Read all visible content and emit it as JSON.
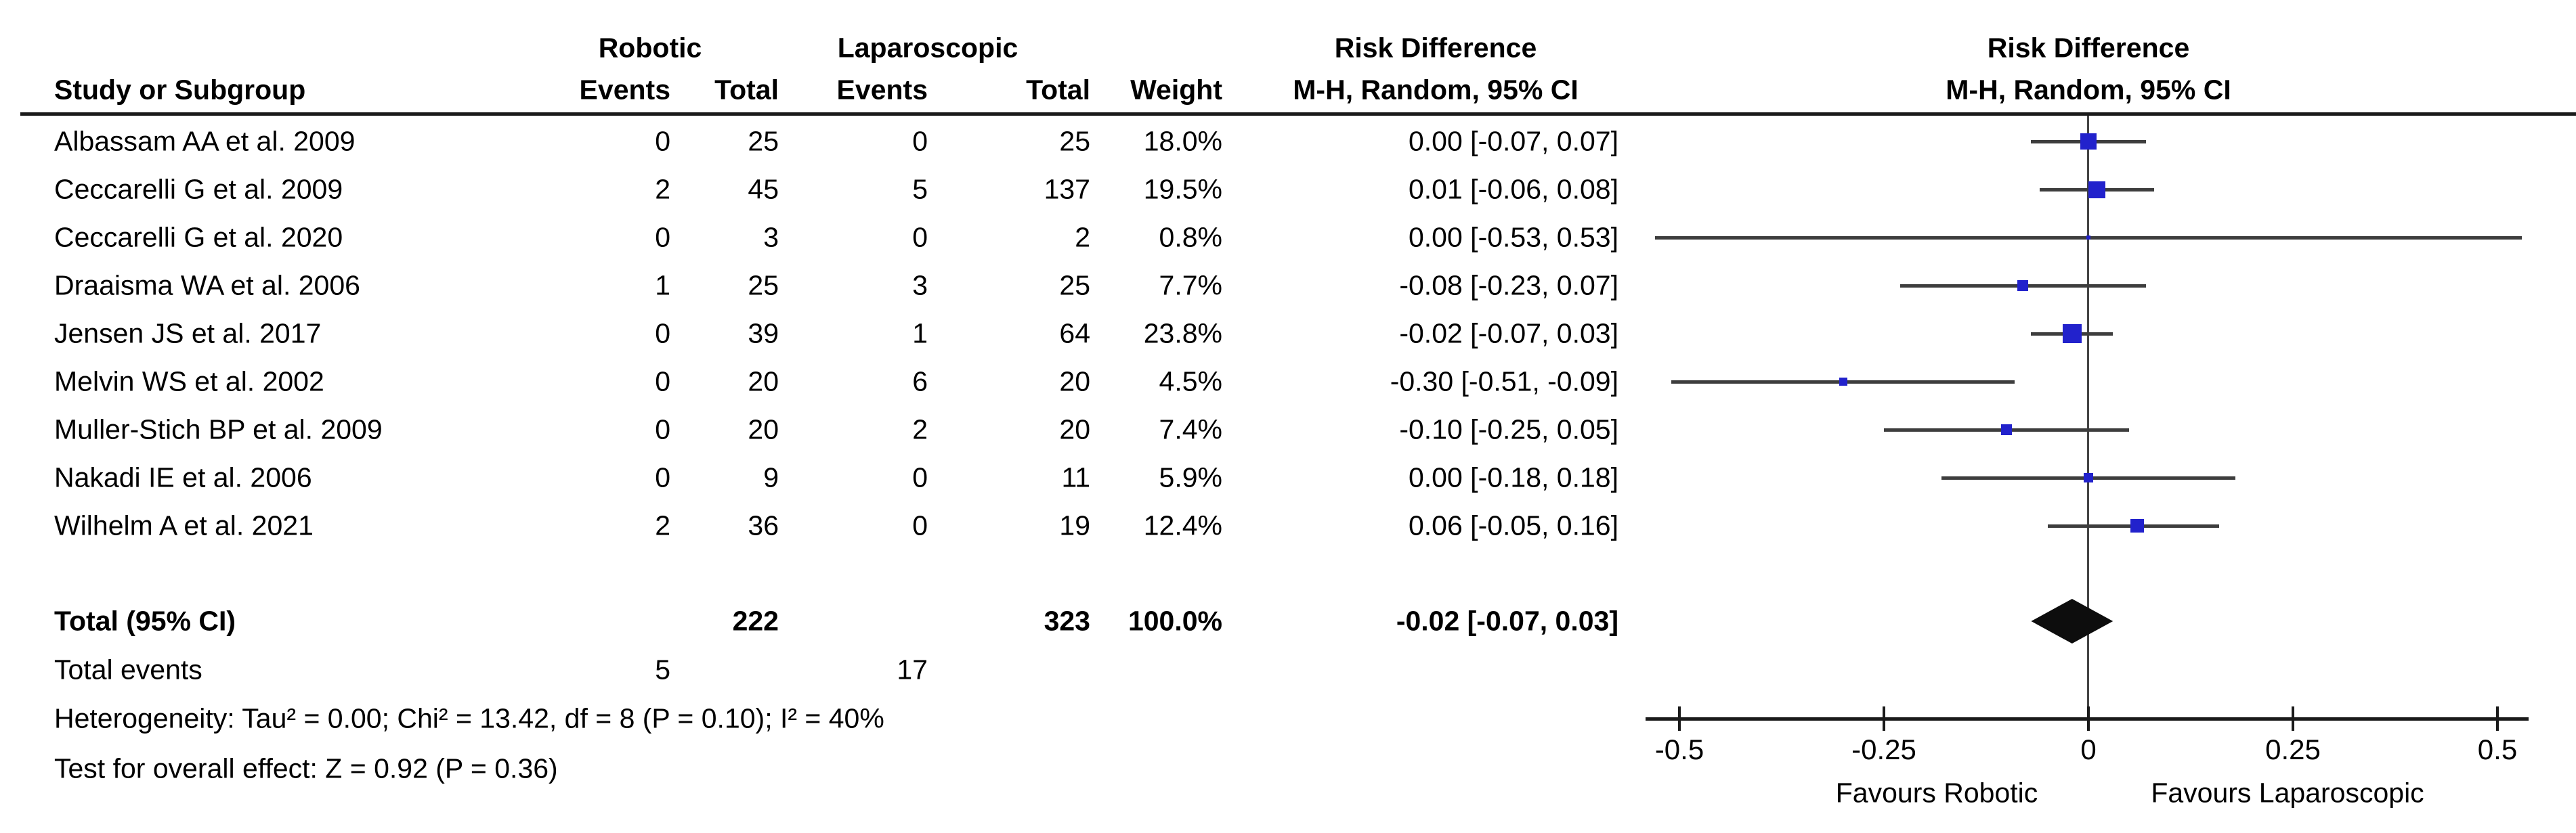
{
  "header": {
    "group1": "Robotic",
    "group2": "Laparoscopic",
    "col_study": "Study or Subgroup",
    "col_events1": "Events",
    "col_total1": "Total",
    "col_events2": "Events",
    "col_total2": "Total",
    "col_weight": "Weight",
    "effect_title_text": "Risk Difference",
    "effect_subtitle_text": "M-H, Random, 95% CI",
    "effect_title_plot": "Risk Difference",
    "effect_subtitle_plot": "M-H, Random, 95% CI"
  },
  "colors": {
    "square": "#2222cc",
    "ci_line": "#3d3d3d",
    "diamond": "#0d0d0d",
    "axis": "#1a1a1a",
    "text": "#000000"
  },
  "chart_data": {
    "type": "forest",
    "effect_measure": "Risk Difference, M-H, Random, 95% CI",
    "xlim": [
      -0.5,
      0.5
    ],
    "studies": [
      {
        "name": "Albassam AA et al. 2009",
        "events_robotic": "0",
        "total_robotic": "25",
        "events_lap": "0",
        "total_lap": "25",
        "weight": "18.0%",
        "weight_value": 18.0,
        "rd": 0.0,
        "ci": [
          -0.07,
          0.07
        ],
        "ci_label": "0.00 [-0.07, 0.07]"
      },
      {
        "name": "Ceccarelli G et al. 2009",
        "events_robotic": "2",
        "total_robotic": "45",
        "events_lap": "5",
        "total_lap": "137",
        "weight": "19.5%",
        "weight_value": 19.5,
        "rd": 0.01,
        "ci": [
          -0.06,
          0.08
        ],
        "ci_label": "0.01 [-0.06, 0.08]"
      },
      {
        "name": "Ceccarelli G et al. 2020",
        "events_robotic": "0",
        "total_robotic": "3",
        "events_lap": "0",
        "total_lap": "2",
        "weight": "0.8%",
        "weight_value": 0.8,
        "rd": 0.0,
        "ci": [
          -0.53,
          0.53
        ],
        "ci_label": "0.00 [-0.53, 0.53]"
      },
      {
        "name": "Draaisma WA et al. 2006",
        "events_robotic": "1",
        "total_robotic": "25",
        "events_lap": "3",
        "total_lap": "25",
        "weight": "7.7%",
        "weight_value": 7.7,
        "rd": -0.08,
        "ci": [
          -0.23,
          0.07
        ],
        "ci_label": "-0.08 [-0.23, 0.07]"
      },
      {
        "name": "Jensen JS et al. 2017",
        "events_robotic": "0",
        "total_robotic": "39",
        "events_lap": "1",
        "total_lap": "64",
        "weight": "23.8%",
        "weight_value": 23.8,
        "rd": -0.02,
        "ci": [
          -0.07,
          0.03
        ],
        "ci_label": "-0.02 [-0.07, 0.03]"
      },
      {
        "name": "Melvin WS et al. 2002",
        "events_robotic": "0",
        "total_robotic": "20",
        "events_lap": "6",
        "total_lap": "20",
        "weight": "4.5%",
        "weight_value": 4.5,
        "rd": -0.3,
        "ci": [
          -0.51,
          -0.09
        ],
        "ci_label": "-0.30 [-0.51, -0.09]"
      },
      {
        "name": "Muller-Stich BP et al. 2009",
        "events_robotic": "0",
        "total_robotic": "20",
        "events_lap": "2",
        "total_lap": "20",
        "weight": "7.4%",
        "weight_value": 7.4,
        "rd": -0.1,
        "ci": [
          -0.25,
          0.05
        ],
        "ci_label": "-0.10 [-0.25, 0.05]"
      },
      {
        "name": "Nakadi IE et al. 2006",
        "events_robotic": "0",
        "total_robotic": "9",
        "events_lap": "0",
        "total_lap": "11",
        "weight": "5.9%",
        "weight_value": 5.9,
        "rd": 0.0,
        "ci": [
          -0.18,
          0.18
        ],
        "ci_label": "0.00 [-0.18, 0.18]"
      },
      {
        "name": "Wilhelm A et al. 2021",
        "events_robotic": "2",
        "total_robotic": "36",
        "events_lap": "0",
        "total_lap": "19",
        "weight": "12.4%",
        "weight_value": 12.4,
        "rd": 0.06,
        "ci": [
          -0.05,
          0.16
        ],
        "ci_label": "0.06 [-0.05, 0.16]"
      }
    ],
    "total": {
      "label": "Total (95% CI)",
      "total_robotic": "222",
      "total_lap": "323",
      "weight": "100.0%",
      "rd": -0.02,
      "ci": [
        -0.07,
        0.03
      ],
      "ci_label": "-0.02 [-0.07, 0.03]"
    },
    "total_events": {
      "label": "Total events",
      "robotic": "5",
      "lap": "17"
    },
    "heterogeneity": "Heterogeneity: Tau² = 0.00; Chi² = 13.42, df = 8 (P = 0.10); I² = 40%",
    "overall_effect": "Test for overall effect: Z = 0.92 (P = 0.36)",
    "axis": {
      "ticks": [
        -0.5,
        -0.25,
        0,
        0.25,
        0.5
      ],
      "tick_labels": [
        "-0.5",
        "-0.25",
        "0",
        "0.25",
        "0.5"
      ],
      "favours_left": "Favours Robotic",
      "favours_right": "Favours Laparoscopic"
    }
  }
}
